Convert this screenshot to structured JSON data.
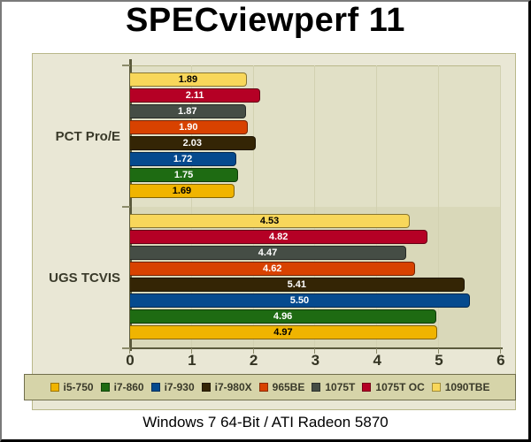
{
  "chart_data": {
    "type": "bar",
    "orientation": "horizontal",
    "title": "SPECviewperf 11",
    "subtitle": "Windows 7 64-Bit / ATI Radeon 5870",
    "xlabel": "",
    "ylabel": "",
    "xlim": [
      0,
      6
    ],
    "x_ticks": [
      "0",
      "1",
      "2",
      "3",
      "4",
      "5",
      "6"
    ],
    "grid": true,
    "legend_position": "bottom",
    "categories": [
      "PCT Pro/E",
      "UGS TCVIS"
    ],
    "series": [
      {
        "name": "i5-750",
        "color": "#f0b400",
        "text_color": "#000000",
        "values": [
          1.69,
          4.97
        ]
      },
      {
        "name": "i7-860",
        "color": "#1e6b12",
        "text_color": "#ffffff",
        "values": [
          1.75,
          4.96
        ]
      },
      {
        "name": "i7-930",
        "color": "#054a8e",
        "text_color": "#ffffff",
        "values": [
          1.72,
          5.5
        ]
      },
      {
        "name": "i7-980X",
        "color": "#342505",
        "text_color": "#ffffff",
        "values": [
          2.03,
          5.41
        ]
      },
      {
        "name": "965BE",
        "color": "#d84200",
        "text_color": "#ffffff",
        "values": [
          1.9,
          4.62
        ]
      },
      {
        "name": "1075T",
        "color": "#454d45",
        "text_color": "#ffffff",
        "values": [
          1.87,
          4.47
        ]
      },
      {
        "name": "1075T OC",
        "color": "#b50025",
        "text_color": "#ffffff",
        "values": [
          2.11,
          4.82
        ]
      },
      {
        "name": "1090TBE",
        "color": "#f8d75a",
        "text_color": "#000000",
        "values": [
          1.89,
          4.53
        ]
      }
    ]
  },
  "labels": {
    "title": "SPECviewperf 11",
    "caption": "Windows 7 64-Bit / ATI Radeon 5870",
    "categories": [
      "PCT Pro/E",
      "UGS TCVIS"
    ],
    "x_ticks": [
      "0",
      "1",
      "2",
      "3",
      "4",
      "5",
      "6"
    ],
    "legend": [
      "i5-750",
      "i7-860",
      "i7-930",
      "i7-980X",
      "965BE",
      "1075T",
      "1075T OC",
      "1090TBE"
    ]
  }
}
